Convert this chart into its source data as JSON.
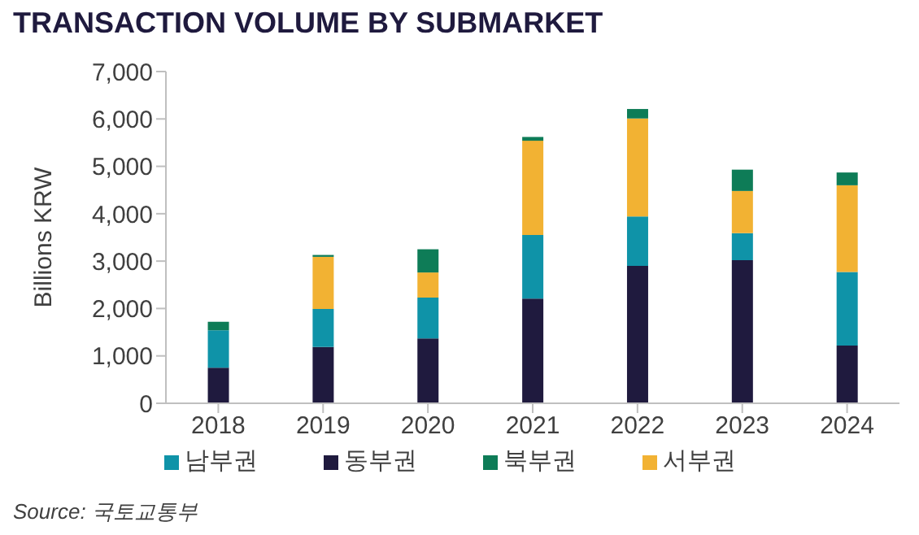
{
  "chart_data": {
    "type": "bar",
    "title": "TRANSACTION VOLUME BY SUBMARKET",
    "ylabel": "Billions KRW",
    "categories": [
      "2018",
      "2019",
      "2020",
      "2021",
      "2022",
      "2023",
      "2024"
    ],
    "stacked": true,
    "series": [
      {
        "name": "동부권",
        "color": "#1f1a3e",
        "values": [
          750,
          1190,
          1370,
          2210,
          2900,
          3020,
          1220
        ]
      },
      {
        "name": "남부권",
        "color": "#0f93a8",
        "values": [
          790,
          800,
          860,
          1340,
          1040,
          570,
          1550
        ]
      },
      {
        "name": "서부권",
        "color": "#f2b233",
        "values": [
          0,
          1100,
          530,
          1990,
          2070,
          890,
          1830
        ]
      },
      {
        "name": "북부권",
        "color": "#0e7c57",
        "values": [
          180,
          40,
          490,
          80,
          200,
          450,
          270
        ]
      }
    ],
    "ylim": [
      0,
      7000
    ],
    "yticks": [
      {
        "value": 0,
        "label": "0"
      },
      {
        "value": 1000,
        "label": "1,000"
      },
      {
        "value": 2000,
        "label": "2,000"
      },
      {
        "value": 3000,
        "label": "3,000"
      },
      {
        "value": 4000,
        "label": "4,000"
      },
      {
        "value": 5000,
        "label": "5,000"
      },
      {
        "value": 6000,
        "label": "6,000"
      },
      {
        "value": 7000,
        "label": "7,000"
      }
    ],
    "grid": false,
    "legend": "bottom",
    "annotations": [
      "Source: 국토교통부"
    ]
  }
}
